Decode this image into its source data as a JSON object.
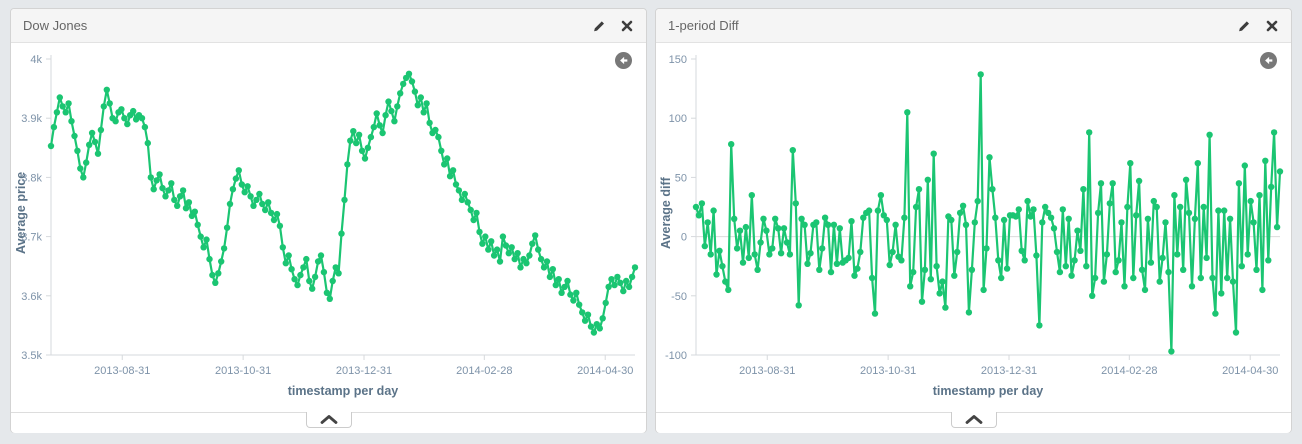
{
  "colors": {
    "series": "#1bc572",
    "axis_line": "#d6d9dc",
    "tick_text": "#7e93a9",
    "axis_title_text": "#5b7388",
    "panel_header_bg": "#f5f5f5",
    "page_bg": "#e5e8eb"
  },
  "icons": {
    "edit": "pencil-icon",
    "close": "x-icon",
    "back": "circle-arrow-left-icon",
    "collapse": "chevron-up-icon"
  },
  "panels": [
    {
      "title": "Dow Jones"
    },
    {
      "title": "1-period Diff"
    }
  ],
  "chart_data": [
    {
      "type": "line",
      "title": "Dow Jones",
      "xlabel": "timestamp per day",
      "ylabel": "Average price",
      "ylim": [
        3500,
        4000
      ],
      "grid": "off",
      "zero_line": false,
      "legend": "off",
      "yticks": [
        {
          "value": 4000,
          "label": "4k"
        },
        {
          "value": 3900,
          "label": "3.9k"
        },
        {
          "value": 3800,
          "label": "3.8k"
        },
        {
          "value": 3700,
          "label": "3.7k"
        },
        {
          "value": 3600,
          "label": "3.6k"
        },
        {
          "value": 3500,
          "label": "3.5k"
        }
      ],
      "xticks": [
        {
          "pos": 0.122,
          "label": "2013-08-31"
        },
        {
          "pos": 0.329,
          "label": "2013-10-31"
        },
        {
          "pos": 0.536,
          "label": "2013-12-31"
        },
        {
          "pos": 0.742,
          "label": "2014-02-28"
        },
        {
          "pos": 0.949,
          "label": "2014-04-30"
        }
      ],
      "values": [
        3853,
        3885,
        3910,
        3935,
        3920,
        3910,
        3925,
        3895,
        3870,
        3845,
        3815,
        3800,
        3825,
        3855,
        3875,
        3860,
        3840,
        3880,
        3920,
        3948,
        3925,
        3900,
        3895,
        3910,
        3915,
        3900,
        3890,
        3905,
        3912,
        3898,
        3905,
        3900,
        3885,
        3858,
        3800,
        3780,
        3795,
        3805,
        3782,
        3768,
        3778,
        3790,
        3762,
        3752,
        3768,
        3778,
        3748,
        3758,
        3735,
        3742,
        3720,
        3700,
        3682,
        3695,
        3662,
        3635,
        3622,
        3638,
        3658,
        3680,
        3715,
        3755,
        3780,
        3798,
        3812,
        3788,
        3775,
        3785,
        3768,
        3752,
        3762,
        3772,
        3755,
        3745,
        3758,
        3740,
        3728,
        3738,
        3718,
        3682,
        3655,
        3668,
        3645,
        3628,
        3618,
        3635,
        3648,
        3662,
        3625,
        3612,
        3632,
        3658,
        3668,
        3640,
        3605,
        3595,
        3625,
        3648,
        3638,
        3705,
        3762,
        3822,
        3862,
        3878,
        3858,
        3872,
        3845,
        3832,
        3850,
        3868,
        3885,
        3908,
        3888,
        3875,
        3905,
        3928,
        3912,
        3895,
        3920,
        3942,
        3958,
        3968,
        3975,
        3962,
        3945,
        3922,
        3935,
        3910,
        3925,
        3892,
        3875,
        3880,
        3868,
        3845,
        3822,
        3832,
        3802,
        3812,
        3788,
        3778,
        3762,
        3772,
        3758,
        3745,
        3728,
        3740,
        3708,
        3688,
        3700,
        3678,
        3692,
        3668,
        3678,
        3658,
        3700,
        3685,
        3672,
        3682,
        3662,
        3672,
        3648,
        3662,
        3655,
        3668,
        3688,
        3702,
        3678,
        3662,
        3648,
        3658,
        3632,
        3645,
        3618,
        3628,
        3605,
        3615,
        3625,
        3602,
        3592,
        3605,
        3585,
        3572,
        3558,
        3568,
        3548,
        3538,
        3552,
        3545,
        3562,
        3588,
        3615,
        3628,
        3618,
        3632,
        3622,
        3608,
        3625,
        3615,
        3632,
        3648
      ]
    },
    {
      "type": "line",
      "title": "1-period Diff",
      "xlabel": "timestamp per day",
      "ylabel": "Average diff",
      "ylim": [
        -100,
        150
      ],
      "grid": "zero-line-only",
      "zero_line": true,
      "legend": "off",
      "yticks": [
        {
          "value": 150,
          "label": "150"
        },
        {
          "value": 100,
          "label": "100"
        },
        {
          "value": 50,
          "label": "50"
        },
        {
          "value": 0,
          "label": "0"
        },
        {
          "value": -50,
          "label": "-50"
        },
        {
          "value": -100,
          "label": "-100"
        }
      ],
      "xticks": [
        {
          "pos": 0.122,
          "label": "2013-08-31"
        },
        {
          "pos": 0.329,
          "label": "2013-10-31"
        },
        {
          "pos": 0.536,
          "label": "2013-12-31"
        },
        {
          "pos": 0.742,
          "label": "2014-02-28"
        },
        {
          "pos": 0.949,
          "label": "2014-04-30"
        }
      ],
      "values": [
        25,
        18,
        28,
        -8,
        12,
        -15,
        22,
        -32,
        -12,
        -25,
        -38,
        -45,
        78,
        15,
        -10,
        5,
        -22,
        8,
        -18,
        35,
        -15,
        -28,
        -5,
        15,
        5,
        -15,
        -10,
        15,
        7,
        -14,
        7,
        -5,
        -15,
        73,
        28,
        -58,
        15,
        10,
        -23,
        -14,
        10,
        12,
        -28,
        -10,
        16,
        10,
        -30,
        10,
        -23,
        7,
        -22,
        -20,
        -18,
        13,
        -33,
        -27,
        -13,
        16,
        20,
        22,
        -35,
        -65,
        22,
        35,
        18,
        14,
        -24,
        -13,
        10,
        -17,
        -20,
        16,
        105,
        -42,
        -30,
        25,
        40,
        -55,
        -28,
        48,
        -36,
        70,
        -25,
        -48,
        -38,
        -60,
        17,
        14,
        -33,
        -13,
        20,
        26,
        10,
        -64,
        -28,
        12,
        30,
        137,
        -45,
        -10,
        67,
        40,
        16,
        -20,
        -35,
        14,
        -27,
        18,
        18,
        17,
        23,
        -12,
        -20,
        30,
        17,
        23,
        -16,
        -75,
        12,
        25,
        20,
        16,
        7,
        -13,
        -30,
        23,
        -25,
        15,
        -33,
        -20,
        5,
        -12,
        40,
        -25,
        88,
        -50,
        -35,
        20,
        45,
        -38,
        -15,
        28,
        45,
        -30,
        -20,
        12,
        -42,
        25,
        62,
        -35,
        18,
        47,
        -28,
        -45,
        15,
        -22,
        30,
        25,
        -38,
        -18,
        12,
        -30,
        -97,
        35,
        -15,
        25,
        -28,
        48,
        20,
        -42,
        15,
        62,
        -35,
        25,
        -18,
        86,
        -35,
        -65,
        22,
        -48,
        22,
        -35,
        15,
        -38,
        -81,
        45,
        -25,
        60,
        -15,
        30,
        12,
        -28,
        35,
        -45,
        64,
        -20,
        42,
        88,
        8,
        55
      ]
    }
  ]
}
